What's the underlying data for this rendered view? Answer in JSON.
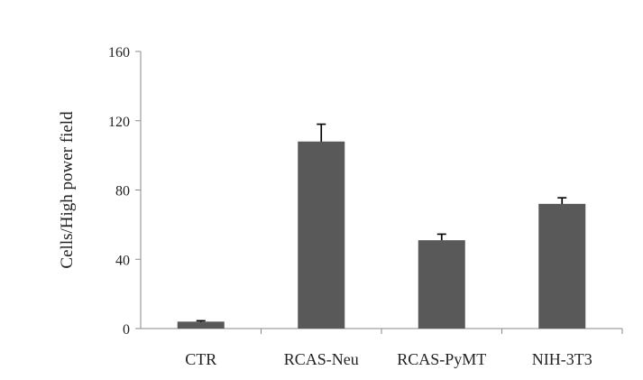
{
  "chart_data": {
    "type": "bar",
    "categories": [
      "CTR",
      "RCAS-Neu",
      "RCAS-PyMT",
      "NIH-3T3"
    ],
    "values": [
      4,
      108,
      51,
      72
    ],
    "errors": [
      0.5,
      10,
      3.5,
      3.5
    ],
    "ylabel": "Cells/High power field",
    "xlabel": "",
    "ylim": [
      0,
      160
    ],
    "yticks": [
      0,
      40,
      80,
      120,
      160
    ],
    "grid": false,
    "bar_color": "#595959"
  }
}
